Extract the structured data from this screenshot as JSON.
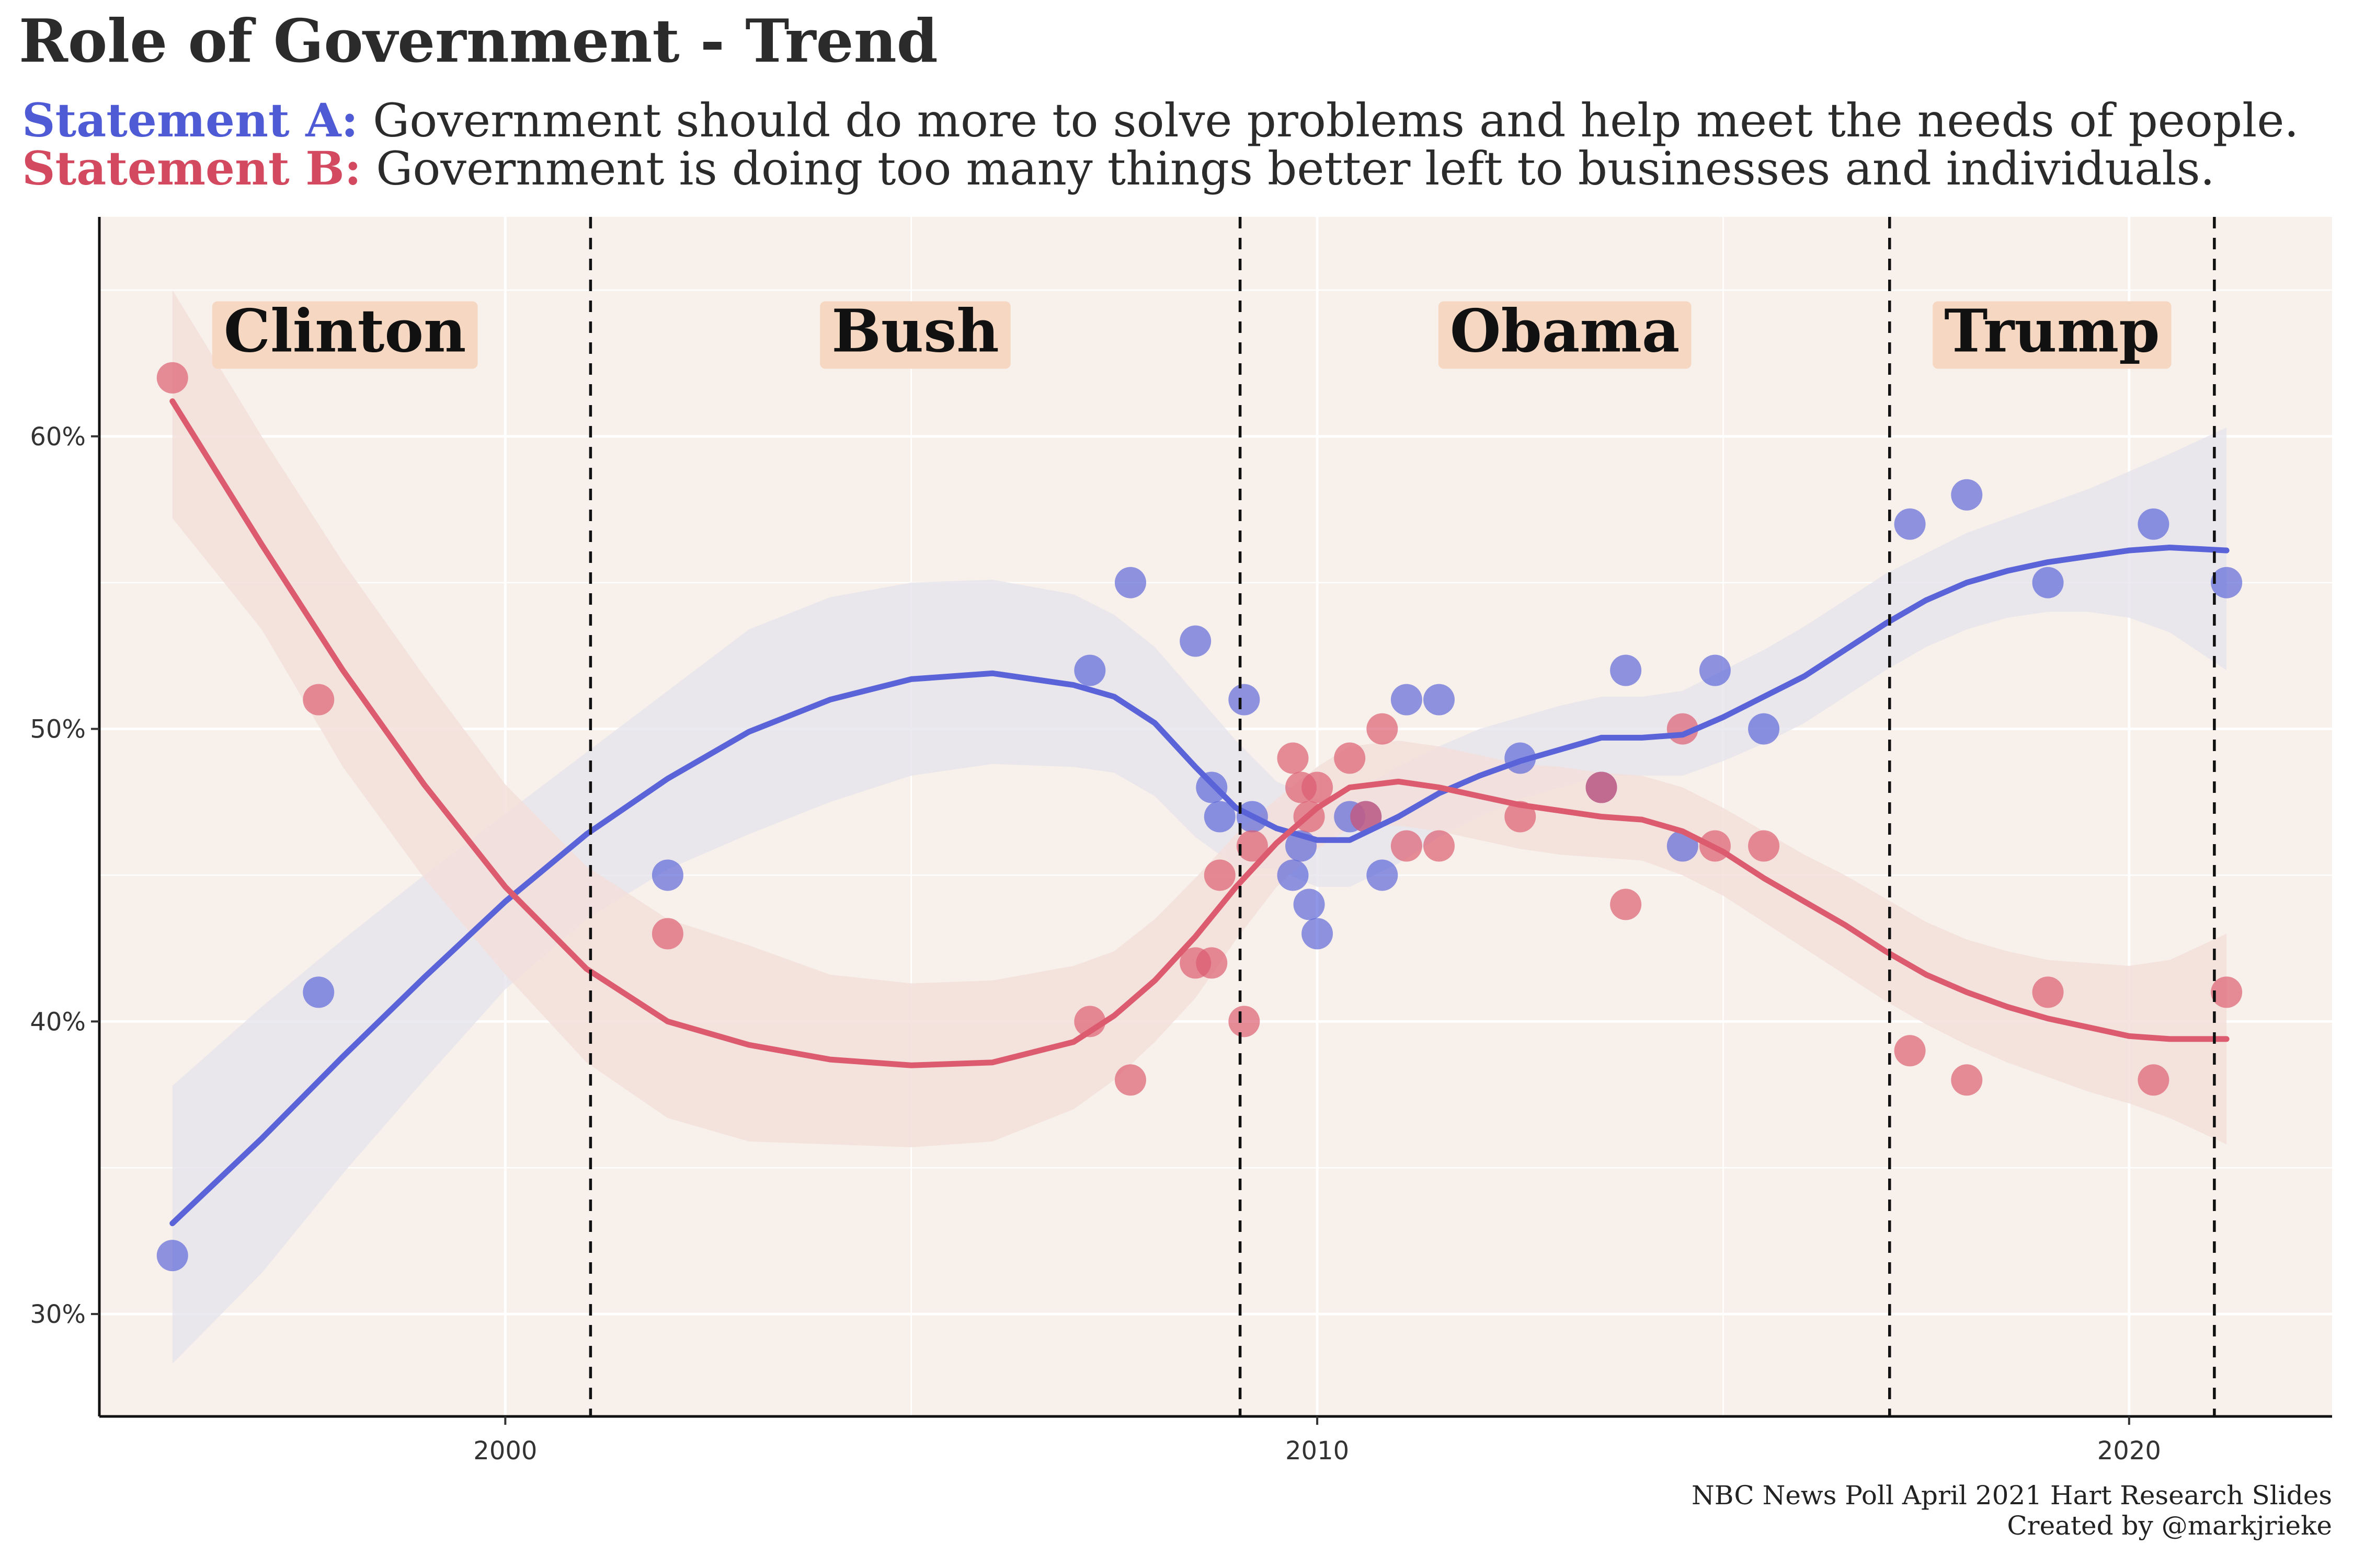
{
  "title": "Role of Government - Trend",
  "statement_a": {
    "label": "Statement A:",
    "text": "Government should do more to solve problems and help meet the needs of people.",
    "color": "#4f5bd5"
  },
  "statement_b": {
    "label": "Statement B:",
    "text": "Government is doing too many things better left to businesses and individuals.",
    "color": "#d34a60"
  },
  "caption": {
    "line1": "NBC News Poll April 2021 Hart Research Slides",
    "line2": "Created by @markjrieke"
  },
  "colors": {
    "panel_background": "#f8f0ea",
    "grid": "#ffffff",
    "band_a": "#e6e5ec",
    "band_b": "#f3ded9",
    "era_label_box": "#f6d7c2"
  },
  "chart_data": {
    "type": "scatter",
    "xlim": [
      1995,
      2022.5
    ],
    "ylim": [
      26.5,
      67.5
    ],
    "x_ticks": [
      2000,
      2010,
      2020
    ],
    "y_ticks": [
      30,
      40,
      50,
      60
    ],
    "y_tick_labels": [
      "30%",
      "40%",
      "50%",
      "60%"
    ],
    "grid": true,
    "smoothing": "loess trend line with confidence band per series",
    "eras": [
      {
        "name": "Clinton",
        "start": 1995,
        "end": 2001.05
      },
      {
        "name": "Bush",
        "start": 2001.05,
        "end": 2009.05
      },
      {
        "name": "Obama",
        "start": 2009.05,
        "end": 2017.05
      },
      {
        "name": "Trump",
        "start": 2017.05,
        "end": 2021.05
      }
    ],
    "dividers": [
      2001.05,
      2009.05,
      2017.05,
      2021.05
    ],
    "series": [
      {
        "key": "A",
        "color": "#5a64d8",
        "points": [
          [
            1995.9,
            32
          ],
          [
            1997.7,
            41
          ],
          [
            2002.0,
            45
          ],
          [
            2007.2,
            52
          ],
          [
            2007.7,
            55
          ],
          [
            2008.5,
            53
          ],
          [
            2008.7,
            48
          ],
          [
            2008.8,
            47
          ],
          [
            2009.1,
            51
          ],
          [
            2009.2,
            47
          ],
          [
            2009.7,
            45
          ],
          [
            2009.8,
            46
          ],
          [
            2009.9,
            44
          ],
          [
            2010.0,
            43
          ],
          [
            2010.4,
            47
          ],
          [
            2010.6,
            47
          ],
          [
            2010.8,
            45
          ],
          [
            2011.1,
            51
          ],
          [
            2011.5,
            51
          ],
          [
            2012.5,
            49
          ],
          [
            2013.5,
            48
          ],
          [
            2013.8,
            52
          ],
          [
            2014.5,
            46
          ],
          [
            2014.9,
            52
          ],
          [
            2015.5,
            50
          ],
          [
            2017.3,
            57
          ],
          [
            2018.0,
            58
          ],
          [
            2019.0,
            55
          ],
          [
            2020.3,
            57
          ],
          [
            2021.2,
            55
          ]
        ],
        "trend": [
          [
            1995.9,
            33.1
          ],
          [
            1997.0,
            36.0
          ],
          [
            1998.0,
            38.8
          ],
          [
            1999.0,
            41.5
          ],
          [
            2000.0,
            44.1
          ],
          [
            2001.0,
            46.4
          ],
          [
            2002.0,
            48.3
          ],
          [
            2003.0,
            49.9
          ],
          [
            2004.0,
            51.0
          ],
          [
            2005.0,
            51.7
          ],
          [
            2006.0,
            51.9
          ],
          [
            2007.0,
            51.5
          ],
          [
            2007.5,
            51.1
          ],
          [
            2008.0,
            50.2
          ],
          [
            2008.5,
            48.7
          ],
          [
            2009.0,
            47.3
          ],
          [
            2009.5,
            46.6
          ],
          [
            2010.0,
            46.2
          ],
          [
            2010.4,
            46.2
          ],
          [
            2011.0,
            47.0
          ],
          [
            2011.5,
            47.8
          ],
          [
            2012.0,
            48.4
          ],
          [
            2012.5,
            48.9
          ],
          [
            2013.0,
            49.3
          ],
          [
            2013.5,
            49.7
          ],
          [
            2014.0,
            49.7
          ],
          [
            2014.5,
            49.8
          ],
          [
            2015.0,
            50.4
          ],
          [
            2015.5,
            51.1
          ],
          [
            2016.0,
            51.8
          ],
          [
            2016.5,
            52.7
          ],
          [
            2017.0,
            53.6
          ],
          [
            2017.5,
            54.4
          ],
          [
            2018.0,
            55.0
          ],
          [
            2018.5,
            55.4
          ],
          [
            2019.0,
            55.7
          ],
          [
            2019.5,
            55.9
          ],
          [
            2020.0,
            56.1
          ],
          [
            2020.5,
            56.2
          ],
          [
            2021.2,
            56.1
          ]
        ],
        "band": [
          [
            1995.9,
            28.3,
            37.8
          ],
          [
            1997.0,
            31.4,
            40.5
          ],
          [
            1998.0,
            34.8,
            42.8
          ],
          [
            1999.0,
            38.0,
            45.0
          ],
          [
            2000.0,
            41.1,
            47.1
          ],
          [
            2001.0,
            43.5,
            49.2
          ],
          [
            2002.0,
            45.2,
            51.3
          ],
          [
            2003.0,
            46.4,
            53.4
          ],
          [
            2004.0,
            47.5,
            54.5
          ],
          [
            2005.0,
            48.4,
            55.0
          ],
          [
            2006.0,
            48.8,
            55.1
          ],
          [
            2007.0,
            48.7,
            54.6
          ],
          [
            2007.5,
            48.5,
            53.9
          ],
          [
            2008.0,
            47.7,
            52.8
          ],
          [
            2008.5,
            46.3,
            51.2
          ],
          [
            2009.0,
            45.3,
            49.6
          ],
          [
            2009.5,
            45.2,
            48.2
          ],
          [
            2010.0,
            44.6,
            47.6
          ],
          [
            2010.4,
            44.6,
            47.8
          ],
          [
            2011.0,
            45.4,
            48.7
          ],
          [
            2011.5,
            46.3,
            49.4
          ],
          [
            2012.0,
            47.0,
            50.0
          ],
          [
            2012.5,
            47.6,
            50.4
          ],
          [
            2013.0,
            48.0,
            50.8
          ],
          [
            2013.5,
            48.4,
            51.1
          ],
          [
            2014.0,
            48.4,
            51.1
          ],
          [
            2014.5,
            48.4,
            51.3
          ],
          [
            2015.0,
            48.9,
            52.0
          ],
          [
            2015.5,
            49.5,
            52.7
          ],
          [
            2016.0,
            50.2,
            53.5
          ],
          [
            2016.5,
            51.1,
            54.4
          ],
          [
            2017.0,
            52.0,
            55.3
          ],
          [
            2017.5,
            52.8,
            56.0
          ],
          [
            2018.0,
            53.4,
            56.7
          ],
          [
            2018.5,
            53.8,
            57.2
          ],
          [
            2019.0,
            54.0,
            57.7
          ],
          [
            2019.5,
            54.0,
            58.2
          ],
          [
            2020.0,
            53.8,
            58.8
          ],
          [
            2020.5,
            53.3,
            59.4
          ],
          [
            2021.2,
            52.0,
            60.3
          ]
        ]
      },
      {
        "key": "B",
        "color": "#dc5b6e",
        "points": [
          [
            1995.9,
            62
          ],
          [
            1997.7,
            51
          ],
          [
            2002.0,
            43
          ],
          [
            2007.2,
            40
          ],
          [
            2007.7,
            38
          ],
          [
            2008.5,
            42
          ],
          [
            2008.7,
            42
          ],
          [
            2008.8,
            45
          ],
          [
            2009.1,
            40
          ],
          [
            2009.2,
            46
          ],
          [
            2009.7,
            49
          ],
          [
            2009.8,
            48
          ],
          [
            2009.9,
            47
          ],
          [
            2010.0,
            48
          ],
          [
            2010.4,
            49
          ],
          [
            2010.6,
            47
          ],
          [
            2010.8,
            50
          ],
          [
            2011.1,
            46
          ],
          [
            2011.5,
            46
          ],
          [
            2012.5,
            47
          ],
          [
            2013.5,
            48
          ],
          [
            2013.8,
            44
          ],
          [
            2014.5,
            50
          ],
          [
            2014.9,
            46
          ],
          [
            2015.5,
            46
          ],
          [
            2017.3,
            39
          ],
          [
            2018.0,
            38
          ],
          [
            2019.0,
            41
          ],
          [
            2020.3,
            38
          ],
          [
            2021.2,
            41
          ]
        ],
        "trend": [
          [
            1995.9,
            61.2
          ],
          [
            1997.0,
            56.3
          ],
          [
            1998.0,
            52.0
          ],
          [
            1999.0,
            48.1
          ],
          [
            2000.0,
            44.6
          ],
          [
            2001.0,
            41.8
          ],
          [
            2002.0,
            40.0
          ],
          [
            2003.0,
            39.2
          ],
          [
            2004.0,
            38.7
          ],
          [
            2005.0,
            38.5
          ],
          [
            2006.0,
            38.6
          ],
          [
            2007.0,
            39.3
          ],
          [
            2007.5,
            40.2
          ],
          [
            2008.0,
            41.4
          ],
          [
            2008.5,
            42.9
          ],
          [
            2009.0,
            44.6
          ],
          [
            2009.5,
            46.1
          ],
          [
            2010.0,
            47.3
          ],
          [
            2010.4,
            48.0
          ],
          [
            2011.0,
            48.2
          ],
          [
            2011.5,
            48.0
          ],
          [
            2012.0,
            47.7
          ],
          [
            2012.5,
            47.4
          ],
          [
            2013.0,
            47.2
          ],
          [
            2013.5,
            47.0
          ],
          [
            2014.0,
            46.9
          ],
          [
            2014.5,
            46.5
          ],
          [
            2015.0,
            45.8
          ],
          [
            2015.5,
            44.9
          ],
          [
            2016.0,
            44.1
          ],
          [
            2016.5,
            43.3
          ],
          [
            2017.0,
            42.4
          ],
          [
            2017.5,
            41.6
          ],
          [
            2018.0,
            41.0
          ],
          [
            2018.5,
            40.5
          ],
          [
            2019.0,
            40.1
          ],
          [
            2019.5,
            39.8
          ],
          [
            2020.0,
            39.5
          ],
          [
            2020.5,
            39.4
          ],
          [
            2021.2,
            39.4
          ]
        ],
        "band": [
          [
            1995.9,
            57.2,
            65.0
          ],
          [
            1997.0,
            53.4,
            60.0
          ],
          [
            1998.0,
            48.7,
            55.7
          ],
          [
            1999.0,
            44.9,
            51.8
          ],
          [
            2000.0,
            41.6,
            48.1
          ],
          [
            2001.0,
            38.6,
            45.3
          ],
          [
            2002.0,
            36.7,
            43.5
          ],
          [
            2003.0,
            35.9,
            42.6
          ],
          [
            2004.0,
            35.8,
            41.6
          ],
          [
            2005.0,
            35.7,
            41.3
          ],
          [
            2006.0,
            35.9,
            41.4
          ],
          [
            2007.0,
            37.0,
            41.9
          ],
          [
            2007.5,
            38.0,
            42.4
          ],
          [
            2008.0,
            39.3,
            43.5
          ],
          [
            2008.5,
            40.8,
            44.9
          ],
          [
            2009.0,
            42.8,
            46.4
          ],
          [
            2009.5,
            44.6,
            47.6
          ],
          [
            2010.0,
            45.9,
            48.7
          ],
          [
            2010.4,
            46.6,
            49.4
          ],
          [
            2011.0,
            46.7,
            49.6
          ],
          [
            2011.5,
            46.5,
            49.4
          ],
          [
            2012.0,
            46.2,
            49.1
          ],
          [
            2012.5,
            45.9,
            48.8
          ],
          [
            2013.0,
            45.7,
            48.7
          ],
          [
            2013.5,
            45.6,
            48.5
          ],
          [
            2014.0,
            45.5,
            48.4
          ],
          [
            2014.5,
            45.0,
            48.0
          ],
          [
            2015.0,
            44.3,
            47.3
          ],
          [
            2015.5,
            43.4,
            46.5
          ],
          [
            2016.0,
            42.5,
            45.7
          ],
          [
            2016.5,
            41.6,
            45.0
          ],
          [
            2017.0,
            40.7,
            44.2
          ],
          [
            2017.5,
            39.9,
            43.4
          ],
          [
            2018.0,
            39.2,
            42.8
          ],
          [
            2018.5,
            38.6,
            42.4
          ],
          [
            2019.0,
            38.1,
            42.1
          ],
          [
            2019.5,
            37.6,
            42.0
          ],
          [
            2020.0,
            37.2,
            41.9
          ],
          [
            2020.5,
            36.7,
            42.1
          ],
          [
            2021.2,
            35.8,
            43.0
          ]
        ]
      }
    ]
  }
}
